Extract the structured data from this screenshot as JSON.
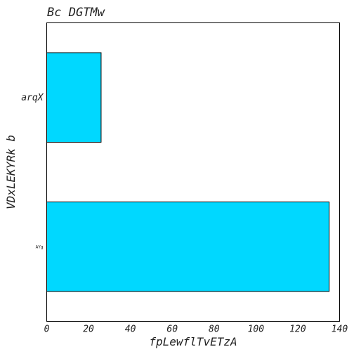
{
  "chart_data": {
    "type": "bar",
    "orientation": "horizontal",
    "title": "Bc DGTMw",
    "xlabel": "fpLewflTvETzA",
    "ylabel": "VDxLEKYRk b",
    "categories": [
      "arqX",
      "AYg"
    ],
    "values": [
      26,
      135
    ],
    "xlim": [
      0,
      140
    ],
    "xticks": [
      "0",
      "20",
      "40",
      "60",
      "80",
      "100",
      "120",
      "140"
    ],
    "grid": false,
    "bar_color": "#00d8ff",
    "edge_color": "#000000"
  }
}
